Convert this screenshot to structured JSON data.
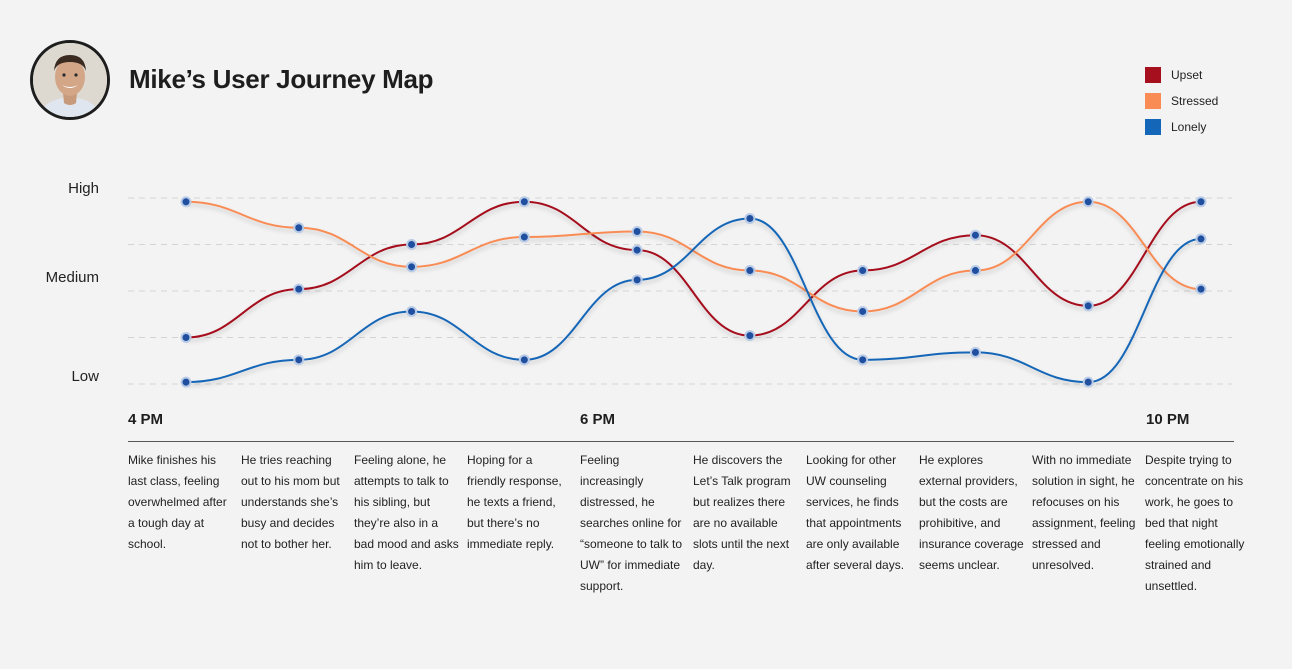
{
  "title": "Mike’s User Journey Map",
  "legend": [
    {
      "label": "Upset",
      "color": "#a50f1e"
    },
    {
      "label": "Stressed",
      "color": "#f98c55"
    },
    {
      "label": "Lonely",
      "color": "#1366b8"
    }
  ],
  "levels": [
    "High",
    "Medium",
    "Low"
  ],
  "time_ticks": [
    "4 PM",
    "6 PM",
    "10 PM"
  ],
  "steps": [
    "Mike finishes his last class, feeling overwhelmed after a tough day at school.",
    "He tries reaching out to his mom but understands she’s busy and decides not to bother her.",
    "Feeling alone, he attempts to talk to his sibling, but they’re also in a bad mood and asks him to leave.",
    "Hoping for a friendly response, he texts a friend, but there’s no immediate reply.",
    "Feeling increasingly distressed, he searches online for “someone to talk to UW” for immediate support.",
    "He discovers the Let’s Talk program but realizes there are no available slots until the next day.",
    "Looking for other UW counseling services, he finds that appointments are only available after several days.",
    "He explores external providers, but the costs are prohibitive, and insurance coverage seems unclear.",
    "With no immediate solution in sight, he refocuses on his assignment, feeling stressed and unresolved.",
    "Despite trying to concentrate on his work, he goes to bed that night feeling emotionally strained and unsettled."
  ],
  "chart_data": {
    "type": "line",
    "title": "Mike’s User Journey Map",
    "xlabel": "",
    "ylabel": "",
    "y_scale": "Low = 0, Medium = 0.5, High = 1",
    "ylim": [
      0,
      1
    ],
    "x": [
      1,
      2,
      3,
      4,
      5,
      6,
      7,
      8,
      9,
      10
    ],
    "x_ticks": {
      "1": "4 PM",
      "5": "6 PM",
      "10": "10 PM"
    },
    "grid": true,
    "legend_position": "top-right",
    "series": [
      {
        "name": "Upset",
        "color": "#a50f1e",
        "values": [
          0.25,
          0.51,
          0.75,
          0.98,
          0.72,
          0.26,
          0.61,
          0.8,
          0.42,
          0.98
        ]
      },
      {
        "name": "Stressed",
        "color": "#f98c55",
        "values": [
          0.98,
          0.84,
          0.63,
          0.79,
          0.82,
          0.61,
          0.39,
          0.61,
          0.98,
          0.51
        ]
      },
      {
        "name": "Lonely",
        "color": "#1366b8",
        "values": [
          0.01,
          0.13,
          0.39,
          0.13,
          0.56,
          0.89,
          0.13,
          0.17,
          0.01,
          0.78
        ]
      }
    ]
  }
}
